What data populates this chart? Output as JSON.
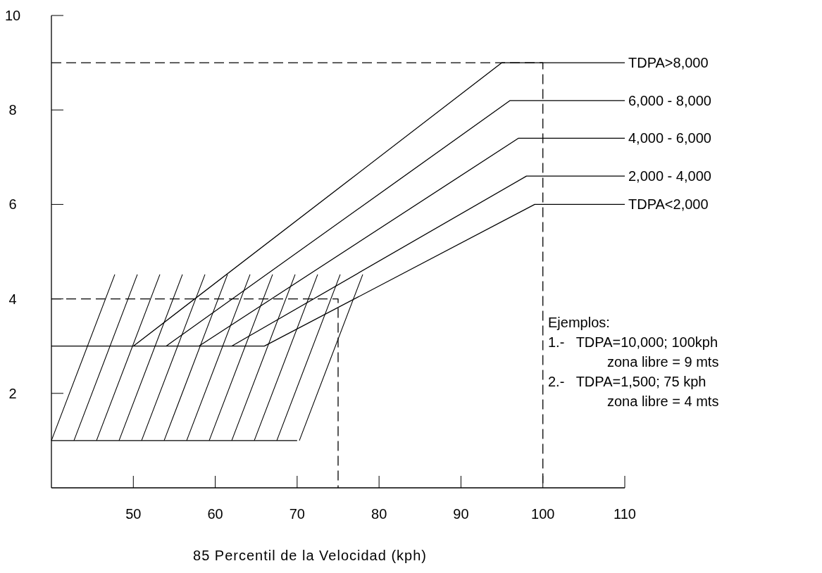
{
  "chart_data": {
    "type": "line",
    "xlabel": "85 Percentil de la Velocidad (kph)",
    "xlim": [
      40,
      110
    ],
    "xticks": [
      50,
      60,
      70,
      80,
      90,
      100,
      110
    ],
    "ylim": [
      0,
      10
    ],
    "yticks": [
      2,
      4,
      6,
      8,
      10
    ],
    "grid": false,
    "marker": "none",
    "series": [
      {
        "name": "TDPA>8,000",
        "color": "#000000",
        "x": [
          50,
          95,
          110
        ],
        "values": [
          3,
          9,
          9
        ]
      },
      {
        "name": "6,000 - 8,000",
        "color": "#000000",
        "x": [
          54,
          96,
          110
        ],
        "values": [
          3,
          8.2,
          8.2
        ]
      },
      {
        "name": "4,000 - 6,000",
        "color": "#000000",
        "x": [
          58,
          97,
          110
        ],
        "values": [
          3,
          7.4,
          7.4
        ]
      },
      {
        "name": "2,000 - 4,000",
        "color": "#000000",
        "x": [
          62,
          98,
          110
        ],
        "values": [
          3,
          6.6,
          6.6
        ]
      },
      {
        "name": "TDPA<2,000",
        "color": "#000000",
        "x": [
          40,
          66,
          99,
          110
        ],
        "values": [
          3,
          3,
          6,
          6
        ]
      },
      {
        "color": "#000000",
        "x": [
          40,
          70
        ],
        "values": [
          1,
          1
        ]
      },
      {
        "color": "#000000",
        "line_style": "dashed",
        "x": [
          40,
          100,
          100
        ],
        "values": [
          9,
          9,
          0
        ]
      },
      {
        "color": "#000000",
        "line_style": "dashed",
        "x": [
          40,
          75,
          75
        ],
        "values": [
          4,
          4,
          0
        ]
      }
    ],
    "annotations": [
      "Ejemplos:",
      "1.-   TDPA=10,000; 100kph",
      "zona libre = 9 mts",
      "2.-   TDPA=1,500; 75 kph",
      "zona libre = 4 mts"
    ]
  }
}
